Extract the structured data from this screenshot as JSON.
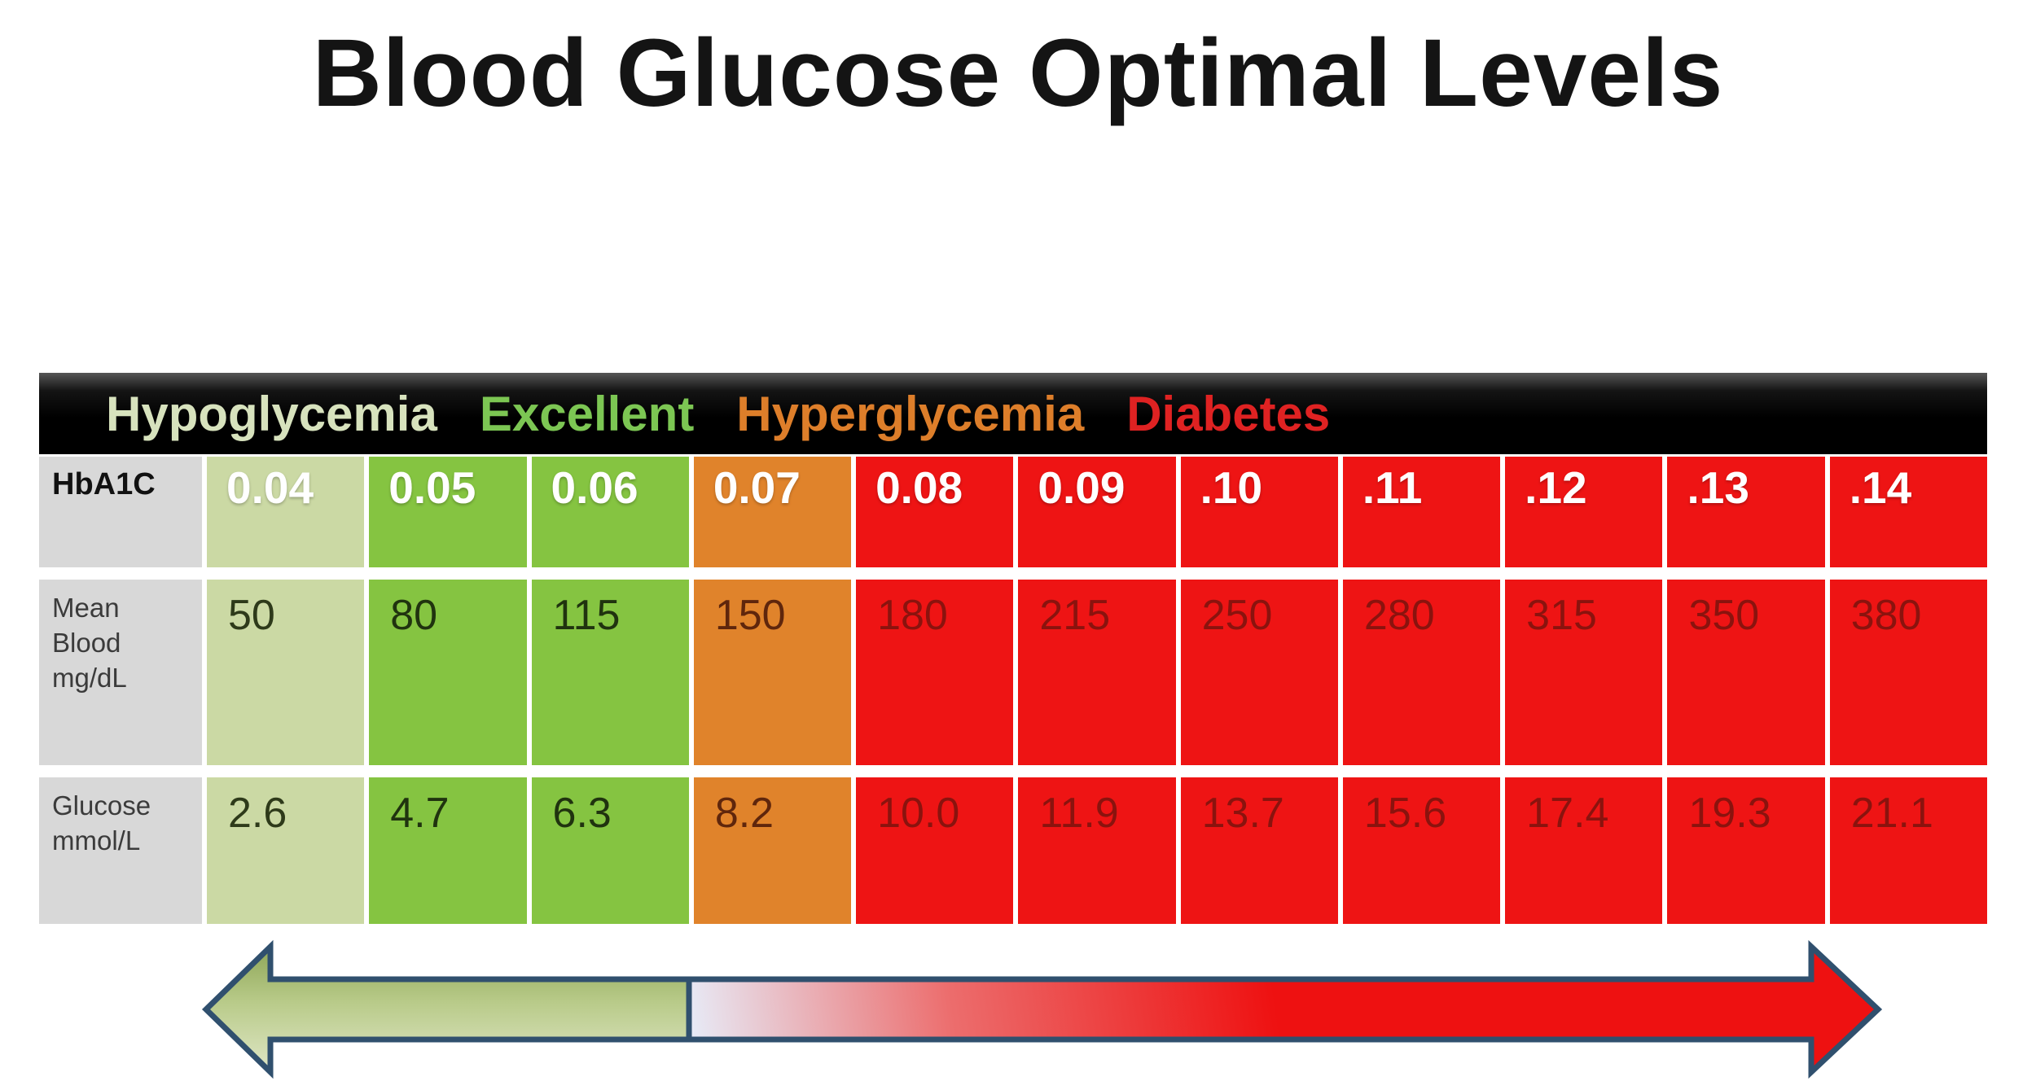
{
  "title": "Blood Glucose Optimal Levels",
  "legend": {
    "background": "#000000",
    "items": [
      {
        "label": "Hypoglycemia",
        "color": "#d7e2bd"
      },
      {
        "label": "Excellent",
        "color": "#7cc653"
      },
      {
        "label": "Hyperglycemia",
        "color": "#dd7e2a"
      },
      {
        "label": "Diabetes",
        "color": "#df2222"
      }
    ]
  },
  "table": {
    "header_bg": "#d8d8d8",
    "hba1c_text_color": "#ffffff",
    "row_headers": [
      {
        "lines": [
          "HbA1C"
        ]
      },
      {
        "lines": [
          "Mean",
          "Blood",
          "mg/dL"
        ]
      },
      {
        "lines": [
          "Glucose",
          "mmol/L"
        ]
      }
    ],
    "columns": [
      {
        "hba1c": "0.04",
        "mg_dl": "50",
        "mmol_l": "2.6",
        "bg": "#cbd9a4",
        "value_color": "#2e3a1a",
        "zone": "Hypoglycemia"
      },
      {
        "hba1c": "0.05",
        "mg_dl": "80",
        "mmol_l": "4.7",
        "bg": "#85c441",
        "value_color": "#20330f",
        "zone": "Excellent"
      },
      {
        "hba1c": "0.06",
        "mg_dl": "115",
        "mmol_l": "6.3",
        "bg": "#85c441",
        "value_color": "#20330f",
        "zone": "Excellent"
      },
      {
        "hba1c": "0.07",
        "mg_dl": "150",
        "mmol_l": "8.2",
        "bg": "#e0832b",
        "value_color": "#5f260c",
        "zone": "Hyperglycemia"
      },
      {
        "hba1c": "0.08",
        "mg_dl": "180",
        "mmol_l": "10.0",
        "bg": "#ee1414",
        "value_color": "#8a130e",
        "zone": "Diabetes"
      },
      {
        "hba1c": "0.09",
        "mg_dl": "215",
        "mmol_l": "11.9",
        "bg": "#ee1414",
        "value_color": "#8a130e",
        "zone": "Diabetes"
      },
      {
        "hba1c": ".10",
        "mg_dl": "250",
        "mmol_l": "13.7",
        "bg": "#ee1414",
        "value_color": "#8a130e",
        "zone": "Diabetes"
      },
      {
        "hba1c": ".11",
        "mg_dl": "280",
        "mmol_l": "15.6",
        "bg": "#ee1414",
        "value_color": "#8a130e",
        "zone": "Diabetes"
      },
      {
        "hba1c": ".12",
        "mg_dl": "315",
        "mmol_l": "17.4",
        "bg": "#ee1414",
        "value_color": "#8a130e",
        "zone": "Diabetes"
      },
      {
        "hba1c": ".13",
        "mg_dl": "350",
        "mmol_l": "19.3",
        "bg": "#ee1414",
        "value_color": "#8a130e",
        "zone": "Diabetes"
      },
      {
        "hba1c": ".14",
        "mg_dl": "380",
        "mmol_l": "21.1",
        "bg": "#ee1414",
        "value_color": "#8a130e",
        "zone": "Diabetes"
      }
    ]
  },
  "arrow": {
    "outline": "#30506e",
    "green_stops": [
      "#8ea657",
      "#b9cb8a",
      "#dfe6c6"
    ],
    "red_stops": [
      "#e7ecf8",
      "#ec6d6d",
      "#ee1111"
    ]
  },
  "chart_data": {
    "type": "table",
    "title": "Blood Glucose Optimal Levels",
    "legend_entries": [
      "Hypoglycemia",
      "Excellent",
      "Hyperglycemia",
      "Diabetes"
    ],
    "zones_by_column": [
      "Hypoglycemia",
      "Excellent",
      "Excellent",
      "Hyperglycemia",
      "Diabetes",
      "Diabetes",
      "Diabetes",
      "Diabetes",
      "Diabetes",
      "Diabetes",
      "Diabetes"
    ],
    "rows": [
      {
        "label": "HbA1C",
        "values": [
          0.04,
          0.05,
          0.06,
          0.07,
          0.08,
          0.09,
          0.1,
          0.11,
          0.12,
          0.13,
          0.14
        ]
      },
      {
        "label": "Mean Blood mg/dL",
        "values": [
          50,
          80,
          115,
          150,
          180,
          215,
          250,
          280,
          315,
          350,
          380
        ]
      },
      {
        "label": "Glucose mmol/L",
        "values": [
          2.6,
          4.7,
          6.3,
          8.2,
          10.0,
          11.9,
          13.7,
          15.6,
          17.4,
          19.3,
          21.1
        ]
      }
    ],
    "annotations": "Double-headed arrow below table: green (left, low values) to red (right, high values)"
  }
}
